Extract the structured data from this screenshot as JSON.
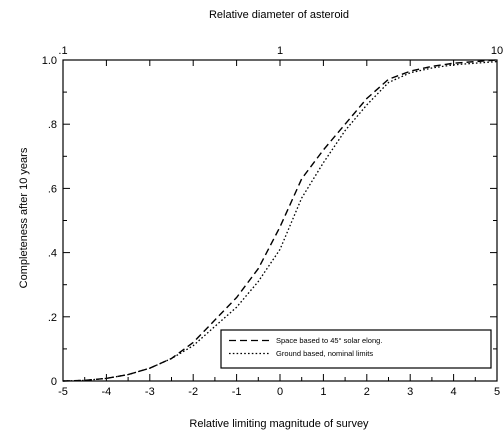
{
  "chart_data": {
    "type": "line",
    "title": "",
    "xlabel": "Relative limiting magnitude of survey",
    "ylabel": "Completeness after 10 years",
    "top_axis_label": "Relative diameter of asteroid",
    "xlim": [
      -5,
      5
    ],
    "ylim": [
      0,
      1
    ],
    "x_ticks": [
      "-5",
      "-4",
      "-3",
      "-2",
      "-1",
      "0",
      "1",
      "2",
      "3",
      "4",
      "5"
    ],
    "y_ticks": [
      {
        "value": 0,
        "label": "0"
      },
      {
        "value": 0.2,
        "label": ".2"
      },
      {
        "value": 0.4,
        "label": ".4"
      },
      {
        "value": 0.6,
        "label": ".6"
      },
      {
        "value": 0.8,
        "label": ".8"
      },
      {
        "value": 1.0,
        "label": "1.0"
      }
    ],
    "top_ticks": [
      {
        "x": -5,
        "label": ".1"
      },
      {
        "x": 0,
        "label": "1"
      },
      {
        "x": 5,
        "label": "10"
      }
    ],
    "grid": false,
    "legend_position": "bottom-right",
    "series": [
      {
        "name": "Space based to 45° solar elong.",
        "style": "dashed",
        "x": [
          -5,
          -4.5,
          -4,
          -3.5,
          -3,
          -2.5,
          -2,
          -1.5,
          -1,
          -0.5,
          0,
          0.5,
          1,
          1.5,
          2,
          2.5,
          3,
          3.5,
          4,
          4.5,
          5
        ],
        "y": [
          0.0,
          0.002,
          0.008,
          0.02,
          0.04,
          0.07,
          0.12,
          0.19,
          0.26,
          0.35,
          0.48,
          0.63,
          0.72,
          0.8,
          0.88,
          0.94,
          0.965,
          0.98,
          0.99,
          0.995,
          1.0
        ]
      },
      {
        "name": "Ground based, nominal limits",
        "style": "dotted",
        "x": [
          -5,
          -4.5,
          -4,
          -3.5,
          -3,
          -2.5,
          -2,
          -1.5,
          -1,
          -0.5,
          0,
          0.5,
          1,
          1.5,
          2,
          2.5,
          3,
          3.5,
          4,
          4.5,
          5
        ],
        "y": [
          0.0,
          0.002,
          0.008,
          0.02,
          0.04,
          0.07,
          0.11,
          0.17,
          0.23,
          0.31,
          0.41,
          0.57,
          0.68,
          0.78,
          0.86,
          0.93,
          0.96,
          0.975,
          0.985,
          0.99,
          0.995
        ]
      }
    ]
  }
}
